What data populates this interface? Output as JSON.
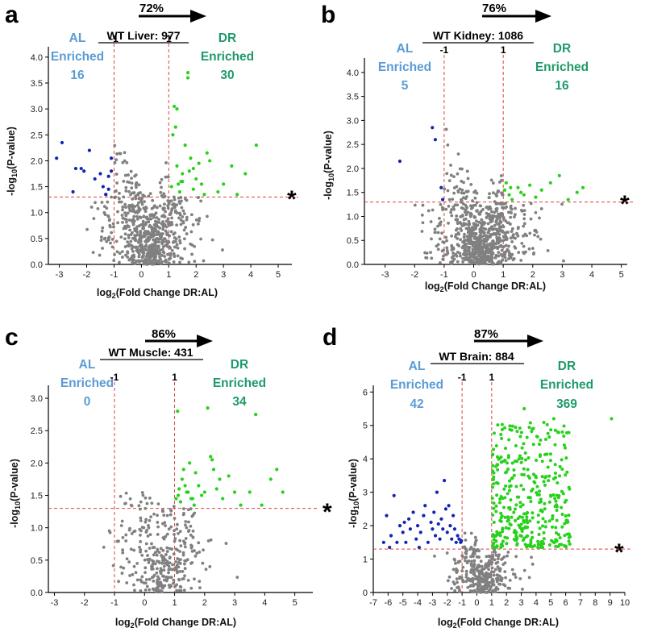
{
  "colors": {
    "ns": "#808080",
    "al": "#1225b0",
    "dr": "#27d11c",
    "al_text": "#5b9bd5",
    "dr_text": "#1f9a6a",
    "threshold": "#d9443b"
  },
  "chart_data": [
    {
      "type": "scatter",
      "panel": "a",
      "title": "WT Liver: 977",
      "percent_label": "72%",
      "xlabel": "log2(Fold Change DR:AL)",
      "ylabel": "-log10(P-value)",
      "xlim": [
        -3.4,
        5.5
      ],
      "ylim": [
        0,
        4.2
      ],
      "xticks": [
        -3,
        -2,
        -1,
        0,
        1,
        2,
        3,
        4,
        5
      ],
      "yticks": [
        0,
        0.5,
        1.0,
        1.5,
        2.0,
        2.5,
        3.0,
        3.5,
        4.0
      ],
      "thresholds": {
        "fold_change": [
          -1,
          1
        ],
        "p_value": 1.3
      },
      "fc_labels": [
        "-1",
        "1"
      ],
      "al": {
        "line1": "AL",
        "line2": "Enriched",
        "count": "16"
      },
      "dr": {
        "line1": "DR",
        "line2": "Enriched",
        "count": "30"
      },
      "significance_marker": "*",
      "series": [
        {
          "name": "AL enriched",
          "x": [
            -3.1,
            -2.9,
            -2.5,
            -2.4,
            -2.2,
            -2.1,
            -1.9,
            -1.7,
            -1.5,
            -1.4,
            -1.3,
            -1.2,
            -1.1,
            -1.1,
            -1.2,
            -1.3
          ],
          "y": [
            2.05,
            2.35,
            1.4,
            1.85,
            1.85,
            1.8,
            2.2,
            1.65,
            1.75,
            1.5,
            1.35,
            1.7,
            1.8,
            2.05,
            1.45,
            1.35
          ]
        },
        {
          "name": "DR enriched",
          "x": [
            1.1,
            1.2,
            1.3,
            1.4,
            1.5,
            1.6,
            1.7,
            1.8,
            1.9,
            2.0,
            2.2,
            2.4,
            2.5,
            2.8,
            3.0,
            3.3,
            3.5,
            3.8,
            4.2,
            1.15,
            1.25,
            1.3,
            1.45,
            1.7,
            1.75,
            1.35,
            2.1,
            2.3,
            1.9,
            1.5
          ],
          "y": [
            1.5,
            3.05,
            1.9,
            1.4,
            1.75,
            2.3,
            3.7,
            2.05,
            1.45,
            1.65,
            1.55,
            2.15,
            2.0,
            1.4,
            1.55,
            1.9,
            1.35,
            1.75,
            2.3,
            2.5,
            2.65,
            3.0,
            1.6,
            3.6,
            1.8,
            1.55,
            1.95,
            1.35,
            1.85,
            1.6
          ]
        }
      ],
      "ns_count": 650,
      "ns_spread": {
        "x_mean": 0.25,
        "x_sd": 0.85,
        "x_min": -3.2,
        "x_max": 5.2,
        "y_max": 3.3
      }
    },
    {
      "type": "scatter",
      "panel": "b",
      "title": "WT Kidney: 1086",
      "percent_label": "76%",
      "xlabel": "log2(Fold Change DR:AL)",
      "ylabel": "-log10(P-value)",
      "xlim": [
        -3.7,
        5.2
      ],
      "ylim": [
        0,
        4.3
      ],
      "xticks": [
        -3,
        -2,
        -1,
        0,
        1,
        2,
        3,
        4,
        5
      ],
      "yticks": [
        0,
        0.5,
        1.0,
        1.5,
        2.0,
        2.5,
        3.0,
        3.5,
        4.0
      ],
      "thresholds": {
        "fold_change": [
          -1,
          1
        ],
        "p_value": 1.3
      },
      "fc_labels": [
        "-1",
        "1"
      ],
      "al": {
        "line1": "AL",
        "line2": "Enriched",
        "count": "5"
      },
      "dr": {
        "line1": "DR",
        "line2": "Enriched",
        "count": "16"
      },
      "significance_marker": "*",
      "series": [
        {
          "name": "AL enriched",
          "x": [
            -2.5,
            -1.4,
            -1.3,
            -1.1,
            -1.05
          ],
          "y": [
            2.15,
            2.85,
            2.6,
            1.6,
            1.35
          ]
        },
        {
          "name": "DR enriched",
          "x": [
            1.05,
            1.1,
            1.2,
            1.3,
            1.5,
            1.7,
            1.9,
            2.1,
            2.3,
            2.6,
            2.9,
            3.2,
            3.5,
            3.7,
            1.25,
            1.6
          ],
          "y": [
            1.55,
            1.7,
            1.45,
            1.35,
            1.6,
            1.45,
            1.65,
            1.4,
            1.55,
            1.7,
            1.85,
            1.35,
            1.5,
            1.6,
            1.6,
            1.5
          ]
        }
      ],
      "ns_count": 780,
      "ns_spread": {
        "x_mean": 0.3,
        "x_sd": 0.8,
        "x_min": -3.5,
        "x_max": 5.0,
        "y_max": 3.9
      }
    },
    {
      "type": "scatter",
      "panel": "c",
      "title": "WT Muscle: 431",
      "percent_label": "86%",
      "xlabel": "log2(Fold Change DR:AL)",
      "ylabel": "-log10(P-value)",
      "xlim": [
        -3.2,
        5.6
      ],
      "ylim": [
        0,
        3.2
      ],
      "xticks": [
        -3,
        -2,
        -1,
        0,
        1,
        2,
        3,
        4,
        5
      ],
      "yticks": [
        0,
        0.5,
        1.0,
        1.5,
        2.0,
        2.5,
        3.0
      ],
      "thresholds": {
        "fold_change": [
          -1,
          1
        ],
        "p_value": 1.3
      },
      "fc_labels": [
        "-1",
        "1"
      ],
      "al": {
        "line1": "AL",
        "line2": "Enriched",
        "count": "0"
      },
      "dr": {
        "line1": "DR",
        "line2": "Enriched",
        "count": "34"
      },
      "significance_marker": "*",
      "series": [
        {
          "name": "AL enriched",
          "x": [],
          "y": []
        },
        {
          "name": "DR enriched",
          "x": [
            1.05,
            1.1,
            1.15,
            1.2,
            1.25,
            1.3,
            1.4,
            1.5,
            1.6,
            1.7,
            1.8,
            1.9,
            2.0,
            2.1,
            2.2,
            2.3,
            2.4,
            2.5,
            2.6,
            2.8,
            3.0,
            3.2,
            3.5,
            3.7,
            3.9,
            4.2,
            4.4,
            4.6,
            1.12,
            1.35,
            1.55,
            2.25,
            1.45,
            1.65
          ],
          "y": [
            1.45,
            2.8,
            1.6,
            1.4,
            1.75,
            1.9,
            1.55,
            2.0,
            1.45,
            1.85,
            1.65,
            1.5,
            1.55,
            2.85,
            2.1,
            1.9,
            1.6,
            1.75,
            1.45,
            1.8,
            1.55,
            1.35,
            1.55,
            2.75,
            1.35,
            1.75,
            1.9,
            1.55,
            1.5,
            1.65,
            1.45,
            2.05,
            1.55,
            1.35
          ]
        }
      ],
      "ns_count": 330,
      "ns_spread": {
        "x_mean": 0.55,
        "x_sd": 0.8,
        "x_min": -3.0,
        "x_max": 5.3,
        "y_max": 1.55
      }
    },
    {
      "type": "scatter",
      "panel": "d",
      "title": "WT Brain: 884",
      "percent_label": "87%",
      "xlabel": "log2(Fold Change DR:AL)",
      "ylabel": "-log10(P-value)",
      "xlim": [
        -7,
        10
      ],
      "ylim": [
        0,
        6.2
      ],
      "xticks": [
        -7,
        -6,
        -5,
        -4,
        -3,
        -2,
        -1,
        0,
        1,
        2,
        3,
        4,
        5,
        6,
        7,
        8,
        9,
        10
      ],
      "yticks": [
        0,
        1,
        2,
        3,
        4,
        5,
        6
      ],
      "thresholds": {
        "fold_change": [
          -1,
          1
        ],
        "p_value": 1.3
      },
      "fc_labels": [
        "-1",
        "1"
      ],
      "al": {
        "line1": "AL",
        "line2": "Enriched",
        "count": "42"
      },
      "dr": {
        "line1": "DR",
        "line2": "Enriched",
        "count": "369"
      },
      "significance_marker": "*",
      "series": [
        {
          "name": "AL enriched",
          "x": [
            -6.3,
            -6.1,
            -5.8,
            -5.6,
            -5.4,
            -5.2,
            -5.0,
            -4.8,
            -4.6,
            -4.5,
            -4.3,
            -4.1,
            -4.0,
            -3.8,
            -3.6,
            -3.5,
            -3.3,
            -3.1,
            -3.0,
            -2.9,
            -2.8,
            -2.7,
            -2.5,
            -2.4,
            -2.3,
            -2.2,
            -2.1,
            -2.0,
            -1.9,
            -1.8,
            -1.7,
            -1.6,
            -1.5,
            -1.4,
            -1.3,
            -1.2,
            -1.1,
            -1.05,
            -5.9,
            -4.9,
            -3.9,
            -2.6
          ],
          "y": [
            1.5,
            2.3,
            1.7,
            2.9,
            1.5,
            2.0,
            1.8,
            1.5,
            2.2,
            1.9,
            2.4,
            1.6,
            2.0,
            1.8,
            2.3,
            2.6,
            1.5,
            2.1,
            1.9,
            2.4,
            1.7,
            3.0,
            1.6,
            2.2,
            1.9,
            3.35,
            2.5,
            1.8,
            2.6,
            2.0,
            1.6,
            2.3,
            1.9,
            1.5,
            1.7,
            1.6,
            1.5,
            1.55,
            1.35,
            2.1,
            1.35,
            2.05
          ]
        }
      ],
      "dr_count": 369,
      "dr_spread": {
        "x_min": 1.05,
        "x_max": 6.3,
        "y_min": 1.35,
        "y_max": 5.5,
        "outliers_x": [
          9.1,
          3.2,
          5.2
        ],
        "outliers_y": [
          5.2,
          5.5,
          5.2
        ]
      },
      "ns_count": 320,
      "ns_spread": {
        "x_mean": 0.4,
        "x_sd": 1.1,
        "x_min": -5.0,
        "x_max": 6.2,
        "y_max": 1.8
      }
    }
  ]
}
